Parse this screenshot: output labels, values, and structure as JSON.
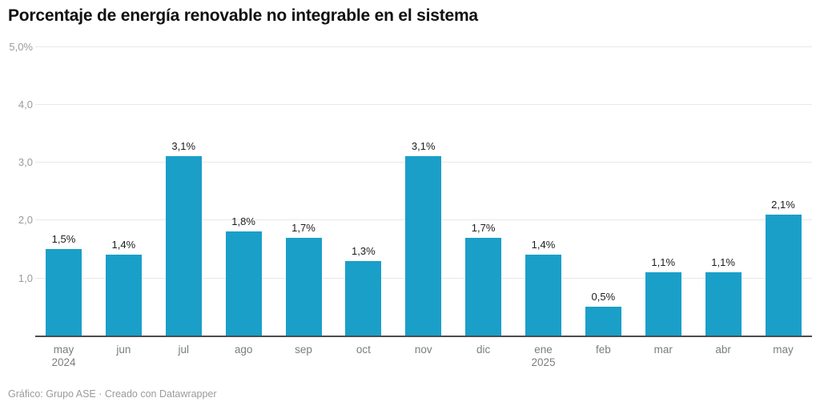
{
  "title": "Porcentaje de energía renovable no integrable en el sistema",
  "footer": {
    "attribution": "Gráfico: Grupo ASE · Creado con Datawrapper"
  },
  "colors": {
    "bar": "#1a9fc9",
    "grid": "#e8e8e8",
    "baseline": "#4d4d4d",
    "value_label_text": "#1d1d1d",
    "axis_label_text": "#7d7d7d",
    "y_tick_text": "#9b9b9b",
    "title_text": "#111111",
    "footer_text": "#9b9b9b"
  },
  "chart_data": {
    "type": "bar",
    "title": "Porcentaje de energía renovable no integrable en el sistema",
    "categories": [
      "may",
      "jun",
      "jul",
      "ago",
      "sep",
      "oct",
      "nov",
      "dic",
      "ene",
      "feb",
      "mar",
      "abr",
      "may"
    ],
    "category_sublabels": [
      "2024",
      "",
      "",
      "",
      "",
      "",
      "",
      "",
      "2025",
      "",
      "",
      "",
      ""
    ],
    "values": [
      1.5,
      1.4,
      3.1,
      1.8,
      1.7,
      1.3,
      3.1,
      1.7,
      1.4,
      0.5,
      1.1,
      1.1,
      2.1
    ],
    "value_labels": [
      "1,5%",
      "1,4%",
      "3,1%",
      "1,8%",
      "1,7%",
      "1,3%",
      "3,1%",
      "1,7%",
      "1,4%",
      "0,5%",
      "1,1%",
      "1,1%",
      "2,1%"
    ],
    "y_ticks": [
      {
        "value": 5.0,
        "label": "5,0%"
      },
      {
        "value": 4.0,
        "label": "4,0"
      },
      {
        "value": 3.0,
        "label": "3,0"
      },
      {
        "value": 2.0,
        "label": "2,0"
      },
      {
        "value": 1.0,
        "label": "1,0"
      }
    ],
    "xlabel": "",
    "ylabel": "",
    "ylim": [
      0,
      5.0
    ],
    "grid": true,
    "legend_position": "none"
  }
}
